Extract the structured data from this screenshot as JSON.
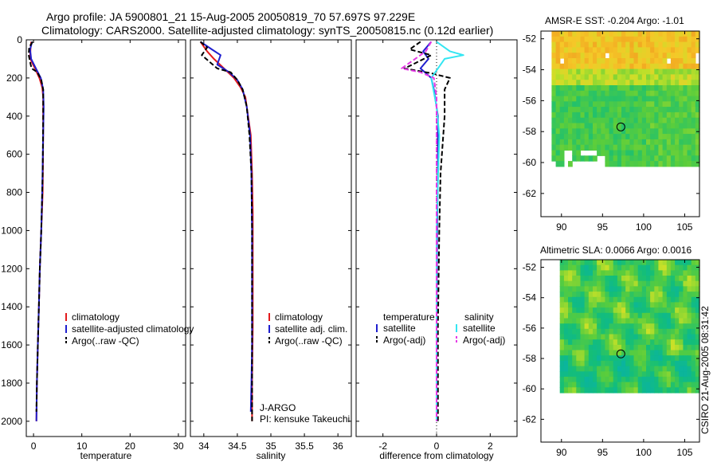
{
  "title_line1": "Argo profile: JA 5900801_21 15-Aug-2005 20050819_70 57.697S 97.229E",
  "title_line2": "Climatology: CARS2000. Satellite-adjusted climatology: synTS_20050815.nc (0.12d earlier)",
  "side_note": "CSIRO 21-Aug-2005 08:31:42",
  "colors": {
    "red": "#e31a1c",
    "blue": "#1f1fcf",
    "black": "#000000",
    "cyan": "#33e6f2",
    "magenta": "#e63ae6"
  },
  "chart_data": [
    {
      "id": "temperature",
      "type": "line",
      "xlabel": "temperature",
      "ylabel": "",
      "xlim": [
        -1.5,
        31.5
      ],
      "ylim": [
        2080,
        0
      ],
      "xticks": [
        0,
        10,
        20,
        30
      ],
      "xtick_labels": [
        "0",
        "10",
        "20",
        "30"
      ],
      "yticks": [
        0,
        200,
        400,
        600,
        800,
        1000,
        1200,
        1400,
        1600,
        1800,
        2000
      ],
      "ytick_labels": [
        "0",
        "200",
        "400",
        "600",
        "800",
        "1000",
        "1200",
        "1400",
        "1600",
        "1800",
        "2000"
      ],
      "legend": {
        "position": "lower-middle",
        "entries": [
          {
            "label": "climatology",
            "color": "red"
          },
          {
            "label": "satellite-adjusted climatology",
            "color": "blue"
          },
          {
            "label": "Argo(..raw -QC)",
            "color": "black"
          }
        ]
      },
      "series": [
        {
          "name": "climatology",
          "color": "red",
          "dash": "solid",
          "points": [
            [
              -0.5,
              10
            ],
            [
              -0.6,
              40
            ],
            [
              -0.7,
              80
            ],
            [
              -0.5,
              110
            ],
            [
              0.3,
              150
            ],
            [
              1.2,
              200
            ],
            [
              1.8,
              250
            ],
            [
              2.0,
              300
            ],
            [
              2.0,
              500
            ],
            [
              1.9,
              800
            ],
            [
              1.6,
              1000
            ],
            [
              1.3,
              1200
            ],
            [
              1.1,
              1400
            ],
            [
              0.9,
              1600
            ],
            [
              0.7,
              1800
            ],
            [
              0.6,
              2000
            ]
          ]
        },
        {
          "name": "satellite-adjusted climatology",
          "color": "blue",
          "dash": "solid",
          "points": [
            [
              -0.3,
              10
            ],
            [
              -0.7,
              50
            ],
            [
              -0.5,
              100
            ],
            [
              0.5,
              150
            ],
            [
              1.5,
              200
            ],
            [
              2.0,
              260
            ],
            [
              2.1,
              350
            ],
            [
              2.0,
              500
            ],
            [
              1.8,
              800
            ],
            [
              1.6,
              1000
            ],
            [
              1.3,
              1200
            ],
            [
              1.1,
              1400
            ],
            [
              0.9,
              1600
            ],
            [
              0.7,
              1800
            ],
            [
              0.6,
              2000
            ]
          ]
        },
        {
          "name": "Argo",
          "color": "black",
          "dash": "dash",
          "points": [
            [
              -0.2,
              10
            ],
            [
              -0.9,
              40
            ],
            [
              -1.0,
              80
            ],
            [
              -0.6,
              130
            ],
            [
              -0.4,
              150
            ],
            [
              0.8,
              170
            ],
            [
              1.6,
              210
            ],
            [
              2.0,
              260
            ],
            [
              2.0,
              400
            ],
            [
              1.9,
              700
            ],
            [
              1.6,
              1000
            ],
            [
              1.3,
              1200
            ],
            [
              1.1,
              1400
            ],
            [
              0.9,
              1600
            ],
            [
              0.7,
              1800
            ],
            [
              0.6,
              1950
            ]
          ]
        }
      ]
    },
    {
      "id": "salinity",
      "type": "line",
      "xlabel": "salinity",
      "ylabel": "",
      "xlim": [
        33.8,
        36.2
      ],
      "ylim": [
        2080,
        0
      ],
      "xticks": [
        34,
        34.5,
        35,
        35.5,
        36
      ],
      "xtick_labels": [
        "34",
        "34.5",
        "35",
        "35.5",
        "36"
      ],
      "yticks": [],
      "ytick_labels": [],
      "legend": {
        "position": "lower-middle",
        "entries": [
          {
            "label": "climatology",
            "color": "red"
          },
          {
            "label": "satellite adj. clim.",
            "color": "blue"
          },
          {
            "label": "Argo(..raw -QC)",
            "color": "black"
          }
        ]
      },
      "annotation": [
        "J-ARGO",
        "PI: kensuke Takeuchi"
      ],
      "series": [
        {
          "name": "climatology",
          "color": "red",
          "dash": "solid",
          "points": [
            [
              33.95,
              10
            ],
            [
              34.05,
              60
            ],
            [
              34.15,
              100
            ],
            [
              34.3,
              150
            ],
            [
              34.45,
              200
            ],
            [
              34.55,
              250
            ],
            [
              34.62,
              300
            ],
            [
              34.66,
              400
            ],
            [
              34.7,
              500
            ],
            [
              34.72,
              700
            ],
            [
              34.73,
              900
            ],
            [
              34.73,
              1200
            ],
            [
              34.73,
              1500
            ],
            [
              34.72,
              1800
            ],
            [
              34.72,
              2000
            ]
          ]
        },
        {
          "name": "satellite adj. clim.",
          "color": "blue",
          "dash": "solid",
          "points": [
            [
              33.95,
              10
            ],
            [
              34.12,
              50
            ],
            [
              34.25,
              80
            ],
            [
              34.2,
              130
            ],
            [
              34.38,
              170
            ],
            [
              34.5,
              210
            ],
            [
              34.58,
              260
            ],
            [
              34.64,
              350
            ],
            [
              34.69,
              500
            ],
            [
              34.71,
              700
            ],
            [
              34.72,
              1000
            ],
            [
              34.72,
              1300
            ],
            [
              34.72,
              1600
            ],
            [
              34.71,
              1800
            ],
            [
              34.7,
              1950
            ]
          ]
        },
        {
          "name": "Argo",
          "color": "black",
          "dash": "dash",
          "points": [
            [
              33.95,
              10
            ],
            [
              34.05,
              40
            ],
            [
              33.97,
              80
            ],
            [
              34.1,
              120
            ],
            [
              34.2,
              150
            ],
            [
              34.4,
              170
            ],
            [
              34.5,
              210
            ],
            [
              34.58,
              260
            ],
            [
              34.64,
              350
            ],
            [
              34.68,
              500
            ],
            [
              34.71,
              700
            ],
            [
              34.72,
              1000
            ],
            [
              34.72,
              1400
            ],
            [
              34.72,
              1800
            ],
            [
              34.72,
              2000
            ]
          ]
        }
      ]
    },
    {
      "id": "difference",
      "type": "line",
      "xlabel": "difference from climatology",
      "ylabel": "",
      "xlim": [
        -3,
        3
      ],
      "ylim": [
        2080,
        0
      ],
      "xticks": [
        -2,
        0,
        2
      ],
      "xtick_labels": [
        "-2",
        "0",
        "2"
      ],
      "yticks": [],
      "ytick_labels": [],
      "legend": {
        "position": "lower-middle",
        "headers": [
          "temperature",
          "salinity"
        ],
        "entries": [
          {
            "label": "satellite",
            "color": "blue",
            "column": 0
          },
          {
            "label": "Argo(-adj)",
            "color": "black",
            "column": 0
          },
          {
            "label": "satellite",
            "color": "cyan",
            "column": 1
          },
          {
            "label": "Argo(-adj)",
            "color": "magenta",
            "column": 1
          }
        ]
      },
      "series": [
        {
          "name": "temperature satellite",
          "color": "blue",
          "dash": "solid",
          "points": [
            [
              -0.2,
              10
            ],
            [
              -0.5,
              60
            ],
            [
              -0.3,
              100
            ],
            [
              -0.6,
              150
            ],
            [
              -0.2,
              200
            ],
            [
              -0.1,
              260
            ],
            [
              0.05,
              400
            ],
            [
              0.05,
              700
            ],
            [
              0.02,
              1000
            ],
            [
              0.0,
              1500
            ],
            [
              0.0,
              2000
            ]
          ]
        },
        {
          "name": "temperature Argo(-adj)",
          "color": "black",
          "dash": "dash",
          "points": [
            [
              -0.6,
              10
            ],
            [
              -1.0,
              50
            ],
            [
              -0.2,
              80
            ],
            [
              -0.9,
              130
            ],
            [
              -1.2,
              150
            ],
            [
              -0.2,
              175
            ],
            [
              0.5,
              200
            ],
            [
              0.3,
              260
            ],
            [
              0.3,
              400
            ],
            [
              0.15,
              700
            ],
            [
              0.1,
              1000
            ],
            [
              0.05,
              1500
            ],
            [
              0.05,
              2000
            ]
          ]
        },
        {
          "name": "salinity satellite",
          "color": "cyan",
          "dash": "solid",
          "points": [
            [
              0.0,
              10
            ],
            [
              0.5,
              60
            ],
            [
              1.0,
              80
            ],
            [
              0.3,
              100
            ],
            [
              -0.2,
              200
            ],
            [
              0.0,
              350
            ],
            [
              0.1,
              500
            ],
            [
              0.0,
              1000
            ],
            [
              0.0,
              1500
            ],
            [
              0.0,
              2000
            ]
          ]
        },
        {
          "name": "salinity Argo(-adj)",
          "color": "magenta",
          "dash": "dash",
          "points": [
            [
              -0.2,
              10
            ],
            [
              -0.4,
              60
            ],
            [
              -1.3,
              150
            ],
            [
              -0.6,
              170
            ],
            [
              -0.1,
              200
            ],
            [
              0.0,
              300
            ],
            [
              0.0,
              600
            ],
            [
              0.0,
              1000
            ],
            [
              0.0,
              1500
            ],
            [
              0.0,
              2000
            ]
          ]
        }
      ]
    },
    {
      "id": "sst_map",
      "type": "heatmap",
      "title": "AMSR-E SST: -0.204 Argo: -1.01",
      "xlim": [
        87.5,
        106.8
      ],
      "ylim": [
        -63.5,
        -51.5
      ],
      "xticks": [
        90,
        95,
        100,
        105
      ],
      "xtick_labels": [
        "90",
        "95",
        "100",
        "105"
      ],
      "yticks": [
        -52,
        -54,
        -56,
        -58,
        -60,
        -62
      ],
      "ytick_labels": [
        "-52",
        "-54",
        "-56",
        "-58",
        "-60",
        "-62"
      ],
      "marker": {
        "lon": 97.229,
        "lat": -57.697
      },
      "data_extent": {
        "lon": [
          88.8,
          106.8
        ],
        "lat": [
          -60.1,
          -51.5
        ]
      }
    },
    {
      "id": "sla_map",
      "type": "heatmap",
      "title": "Altimetric SLA: 0.0066 Argo: 0.0016",
      "xlim": [
        87.5,
        106.8
      ],
      "ylim": [
        -63.5,
        -51.5
      ],
      "xticks": [
        90,
        95,
        100,
        105
      ],
      "xtick_labels": [
        "90",
        "95",
        "100",
        "105"
      ],
      "yticks": [
        -52,
        -54,
        -56,
        -58,
        -60,
        -62
      ],
      "ytick_labels": [
        "-52",
        "-54",
        "-56",
        "-58",
        "-60",
        "-62"
      ],
      "marker": {
        "lon": 97.229,
        "lat": -57.697
      },
      "data_extent": {
        "lon": [
          89.8,
          106.8
        ],
        "lat": [
          -60.1,
          -51.5
        ]
      }
    }
  ]
}
